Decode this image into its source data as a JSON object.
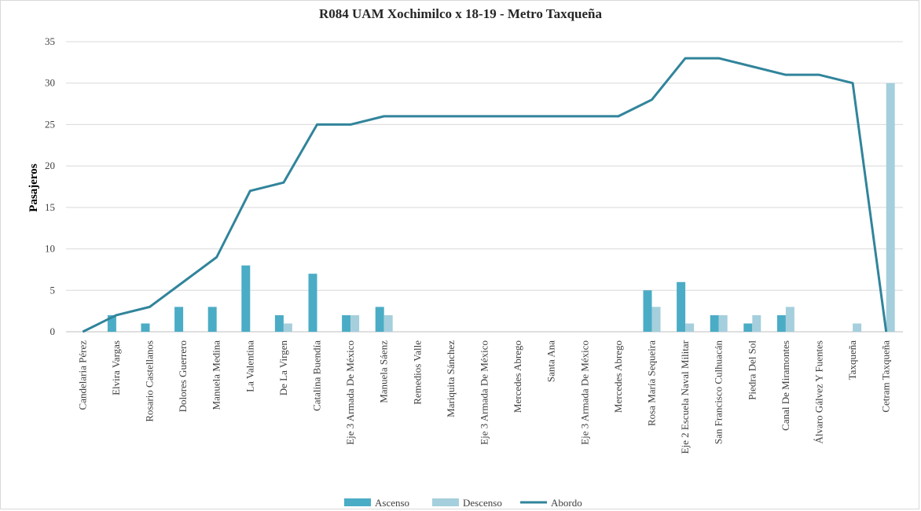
{
  "chart_data": {
    "type": "bar",
    "title": "R084 UAM Xochimilco x 18-19 - Metro Taxqueña",
    "xlabel": "",
    "ylabel": "Pasajeros",
    "ylim": [
      0,
      35
    ],
    "yticks": [
      0,
      5,
      10,
      15,
      20,
      25,
      30,
      35
    ],
    "grid": true,
    "legend_position": "bottom",
    "categories": [
      "Candelaria Pérez",
      "Elvira Vargas",
      "Rosario Castellanos",
      "Dolores Guerrero",
      "Manuela Medina",
      "La Valentina",
      "De La Virgen",
      "Catalina Buendía",
      "Eje 3 Armada De México",
      "Manuela Sáenz",
      "Remedios Valle",
      "Mariquita Sánchez",
      "Eje 3 Armada De México",
      "Mercedes Abrego",
      "Santa Ana",
      "Eje 3 Armada De México",
      "Mercedes Abrego",
      "Rosa María Sequeira",
      "Eje 2  Escuela Naval Militar",
      "San Francisco Culhuacán",
      "Piedra Del Sol",
      "Canal De Miramontes",
      "Álvaro Gálvez Y Fuentes",
      "Taxqueña",
      "Cetram Taxqueña"
    ],
    "series": [
      {
        "name": "Ascenso",
        "type": "bar",
        "color": "#4bacc6",
        "values": [
          0,
          2,
          1,
          3,
          3,
          8,
          2,
          7,
          2,
          3,
          0,
          0,
          0,
          0,
          0,
          0,
          0,
          5,
          6,
          2,
          1,
          2,
          0,
          0,
          0
        ]
      },
      {
        "name": "Descenso",
        "type": "bar",
        "color": "#a5cfdc",
        "values": [
          0,
          0,
          0,
          0,
          0,
          0,
          1,
          0,
          2,
          2,
          0,
          0,
          0,
          0,
          0,
          0,
          0,
          3,
          1,
          2,
          2,
          3,
          0,
          1,
          30
        ]
      },
      {
        "name": "Abordo",
        "type": "line",
        "color": "#31849b",
        "values": [
          0,
          2,
          3,
          6,
          9,
          17,
          18,
          25,
          25,
          26,
          26,
          26,
          26,
          26,
          26,
          26,
          26,
          28,
          33,
          33,
          32,
          31,
          31,
          30,
          0
        ]
      }
    ]
  }
}
